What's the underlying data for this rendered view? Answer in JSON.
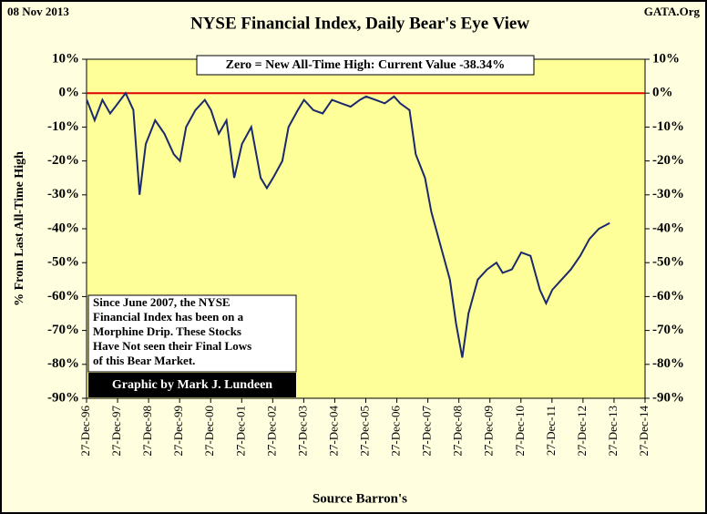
{
  "chart_data": {
    "type": "line",
    "title": "NYSE Financial Index, Daily Bear's Eye View",
    "date_label": "08 Nov 2013",
    "source_site": "GATA.Org",
    "current_value_note": "Zero = New All-Time High: Current Value  -38.34%",
    "commentary": [
      "Since June 2007, the NYSE",
      "Financial Index has been on a",
      "Morphine Drip. These Stocks",
      "Have Not seen their Final Lows",
      "of this Bear Market."
    ],
    "credit": "Graphic by Mark J. Lundeen",
    "x_label": "Source Barron's",
    "y_label": "% From Last All-Time High",
    "xlim": [
      1996.99,
      2014.99
    ],
    "xticks": [
      {
        "value": 1996.99,
        "label": "27-Dec-96"
      },
      {
        "value": 1997.99,
        "label": "27-Dec-97"
      },
      {
        "value": 1998.99,
        "label": "27-Dec-98"
      },
      {
        "value": 1999.99,
        "label": "27-Dec-99"
      },
      {
        "value": 2000.99,
        "label": "27-Dec-00"
      },
      {
        "value": 2001.99,
        "label": "27-Dec-01"
      },
      {
        "value": 2002.99,
        "label": "27-Dec-02"
      },
      {
        "value": 2003.99,
        "label": "27-Dec-03"
      },
      {
        "value": 2004.99,
        "label": "27-Dec-04"
      },
      {
        "value": 2005.99,
        "label": "27-Dec-05"
      },
      {
        "value": 2006.99,
        "label": "27-Dec-06"
      },
      {
        "value": 2007.99,
        "label": "27-Dec-07"
      },
      {
        "value": 2008.99,
        "label": "27-Dec-08"
      },
      {
        "value": 2009.99,
        "label": "27-Dec-09"
      },
      {
        "value": 2010.99,
        "label": "27-Dec-10"
      },
      {
        "value": 2011.99,
        "label": "27-Dec-11"
      },
      {
        "value": 2012.99,
        "label": "27-Dec-12"
      },
      {
        "value": 2013.99,
        "label": "27-Dec-13"
      },
      {
        "value": 2014.99,
        "label": "27-Dec-14"
      }
    ],
    "ylim": [
      -90,
      10
    ],
    "yticks": [
      {
        "value": 10,
        "label": "10%"
      },
      {
        "value": 0,
        "label": "0%"
      },
      {
        "value": -10,
        "label": "-10%"
      },
      {
        "value": -20,
        "label": "-20%"
      },
      {
        "value": -30,
        "label": "-30%"
      },
      {
        "value": -40,
        "label": "-40%"
      },
      {
        "value": -50,
        "label": "-50%"
      },
      {
        "value": -60,
        "label": "-60%"
      },
      {
        "value": -70,
        "label": "-70%"
      },
      {
        "value": -80,
        "label": "-80%"
      },
      {
        "value": -90,
        "label": "-90%"
      }
    ],
    "reference_line": {
      "value": 0,
      "color": "#e00000"
    },
    "x": [
      1997.0,
      1997.25,
      1997.5,
      1997.75,
      1998.0,
      1998.25,
      1998.5,
      1998.7,
      1998.9,
      1999.2,
      1999.5,
      1999.8,
      2000.0,
      2000.2,
      2000.5,
      2000.8,
      2001.0,
      2001.25,
      2001.5,
      2001.75,
      2002.0,
      2002.3,
      2002.6,
      2002.8,
      2003.0,
      2003.3,
      2003.5,
      2003.8,
      2004.0,
      2004.3,
      2004.6,
      2004.9,
      2005.2,
      2005.5,
      2005.8,
      2006.0,
      2006.3,
      2006.6,
      2006.9,
      2007.1,
      2007.4,
      2007.6,
      2007.9,
      2008.1,
      2008.4,
      2008.7,
      2008.9,
      2009.1,
      2009.3,
      2009.6,
      2009.9,
      2010.2,
      2010.4,
      2010.7,
      2011.0,
      2011.3,
      2011.6,
      2011.8,
      2012.0,
      2012.3,
      2012.6,
      2012.9,
      2013.2,
      2013.5,
      2013.85
    ],
    "series": [
      {
        "name": "NYSE Financial Index",
        "color": "#1a2a6c",
        "values": [
          -2,
          -8,
          -2,
          -6,
          -3,
          0,
          -5,
          -30,
          -15,
          -8,
          -12,
          -18,
          -20,
          -10,
          -5,
          -2,
          -5,
          -12,
          -8,
          -25,
          -15,
          -10,
          -25,
          -28,
          -25,
          -20,
          -10,
          -5,
          -2,
          -5,
          -6,
          -2,
          -3,
          -4,
          -2,
          -1,
          -2,
          -3,
          -1,
          -3,
          -5,
          -18,
          -25,
          -35,
          -45,
          -55,
          -68,
          -78,
          -65,
          -55,
          -52,
          -50,
          -53,
          -52,
          -47,
          -48,
          -58,
          -62,
          -58,
          -55,
          -52,
          -48,
          -43,
          -40,
          -38.34
        ]
      }
    ]
  }
}
